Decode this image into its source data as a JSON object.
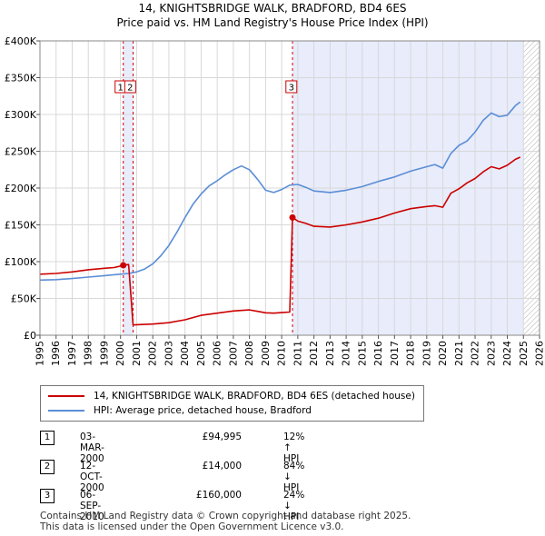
{
  "chart_data": {
    "type": "line",
    "title": "14, KNIGHTSBRIDGE WALK, BRADFORD, BD4 6ES",
    "subtitle": "Price paid vs. HM Land Registry's House Price Index (HPI)",
    "xlim": [
      1995,
      2026
    ],
    "ylim": [
      0,
      400000
    ],
    "y_ticks": [
      0,
      50000,
      100000,
      150000,
      200000,
      250000,
      300000,
      350000,
      400000
    ],
    "y_tick_labels": [
      "£0",
      "£50K",
      "£100K",
      "£150K",
      "£200K",
      "£250K",
      "£300K",
      "£350K",
      "£400K"
    ],
    "x_ticks": [
      1995,
      1996,
      1997,
      1998,
      1999,
      2000,
      2001,
      2002,
      2003,
      2004,
      2005,
      2006,
      2007,
      2008,
      2009,
      2010,
      2011,
      2012,
      2013,
      2014,
      2015,
      2016,
      2017,
      2018,
      2019,
      2020,
      2021,
      2022,
      2023,
      2024,
      2025,
      2026
    ],
    "x_tick_labels": [
      "1995",
      "1996",
      "1997",
      "1998",
      "1999",
      "2000",
      "2001",
      "2002",
      "2003",
      "2004",
      "2005",
      "2006",
      "2007",
      "2008",
      "2009",
      "2010",
      "2011",
      "2012",
      "2013",
      "2014",
      "2015",
      "2016",
      "2017",
      "2018",
      "2019",
      "2020",
      "2021",
      "2022",
      "2023",
      "2024",
      "2025",
      "2026"
    ],
    "grid": true,
    "series": [
      {
        "name": "14, KNIGHTSBRIDGE WALK, BRADFORD, BD4 6ES (detached house)",
        "color": "#cc0000",
        "x": [
          1995.0,
          1996.0,
          1997.0,
          1998.0,
          1999.0,
          1999.6,
          2000.17,
          2000.5,
          2000.78,
          2001.0,
          2002.0,
          2003.0,
          2004.0,
          2005.0,
          2006.0,
          2007.0,
          2008.0,
          2008.5,
          2009.0,
          2009.5,
          2010.0,
          2010.5,
          2010.67,
          2011.0,
          2011.5,
          2012.0,
          2013.0,
          2014.0,
          2015.0,
          2016.0,
          2017.0,
          2018.0,
          2019.0,
          2019.5,
          2020.0,
          2020.5,
          2021.0,
          2021.5,
          2022.0,
          2022.5,
          2023.0,
          2023.5,
          2024.0,
          2024.5,
          2024.8
        ],
        "y": [
          83000,
          84000,
          86000,
          89000,
          91000,
          92000,
          94995,
          96000,
          14000,
          14300,
          15200,
          17000,
          21000,
          27000,
          30000,
          33000,
          34500,
          32500,
          30500,
          30000,
          30800,
          31500,
          160000,
          155000,
          152000,
          148000,
          147000,
          150000,
          154000,
          159000,
          166000,
          172000,
          175000,
          176000,
          174000,
          193000,
          199000,
          207000,
          213000,
          222000,
          229000,
          226000,
          231000,
          239000,
          242000
        ]
      },
      {
        "name": "HPI: Average price, detached house, Bradford",
        "color": "#5b8ed6",
        "x": [
          1995.0,
          1996.0,
          1997.0,
          1998.0,
          1999.0,
          2000.0,
          2000.5,
          2001.0,
          2001.5,
          2002.0,
          2002.5,
          2003.0,
          2003.5,
          2004.0,
          2004.5,
          2005.0,
          2005.5,
          2006.0,
          2006.5,
          2007.0,
          2007.5,
          2008.0,
          2008.5,
          2009.0,
          2009.5,
          2010.0,
          2010.5,
          2011.0,
          2011.5,
          2012.0,
          2013.0,
          2014.0,
          2015.0,
          2016.0,
          2017.0,
          2018.0,
          2019.0,
          2019.5,
          2020.0,
          2020.5,
          2021.0,
          2021.5,
          2022.0,
          2022.5,
          2023.0,
          2023.5,
          2024.0,
          2024.5,
          2024.8
        ],
        "y": [
          75000,
          75500,
          77000,
          79000,
          81000,
          83000,
          84000,
          86000,
          90000,
          97000,
          108000,
          122000,
          140000,
          160000,
          178000,
          192000,
          203000,
          210000,
          218000,
          225000,
          230000,
          225000,
          212000,
          197000,
          194000,
          198000,
          204000,
          205000,
          201000,
          196000,
          194000,
          197000,
          202000,
          209000,
          215000,
          223000,
          229000,
          232000,
          227000,
          247000,
          258000,
          264000,
          276000,
          292000,
          302000,
          297000,
          299000,
          312000,
          317000
        ]
      }
    ],
    "vlines": [
      2000.17,
      2000.78,
      2010.67
    ],
    "shade_ranges": [
      [
        2000.17,
        2000.78
      ],
      [
        2010.67,
        2025.0
      ]
    ],
    "hatch_from": 2025.0,
    "sale_points": [
      {
        "x": 2000.17,
        "y": 94995
      },
      {
        "x": 2010.67,
        "y": 160000
      }
    ],
    "marker_labels": [
      {
        "label": "1",
        "x": 2000.0
      },
      {
        "label": "2",
        "x": 2000.6
      },
      {
        "label": "3",
        "x": 2010.6
      }
    ]
  },
  "legend": {
    "items": [
      {
        "label": "14, KNIGHTSBRIDGE WALK, BRADFORD, BD4 6ES (detached house)",
        "color": "#cc0000"
      },
      {
        "label": "HPI: Average price, detached house, Bradford",
        "color": "#5b8ed6"
      }
    ]
  },
  "transactions": [
    {
      "num": "1",
      "date": "03-MAR-2000",
      "price": "£94,995",
      "hpi": "12% ↑ HPI"
    },
    {
      "num": "2",
      "date": "12-OCT-2000",
      "price": "£14,000",
      "hpi": "84% ↓ HPI"
    },
    {
      "num": "3",
      "date": "06-SEP-2010",
      "price": "£160,000",
      "hpi": "24% ↓ HPI"
    }
  ],
  "footer": {
    "line1": "Contains HM Land Registry data © Crown copyright and database right 2025.",
    "line2": "This data is licensed under the Open Government Licence v3.0."
  }
}
